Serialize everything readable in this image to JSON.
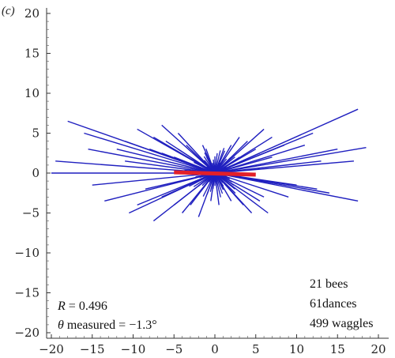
{
  "panel_label": "(c)",
  "chart_data": {
    "type": "scatter",
    "title": "",
    "xlabel": "",
    "ylabel": "",
    "xlim": [
      -21,
      21
    ],
    "ylim": [
      -21,
      21
    ],
    "x_ticks": [
      -20,
      -15,
      -10,
      -5,
      0,
      5,
      10,
      15,
      20
    ],
    "y_ticks": [
      -20,
      -15,
      -10,
      -5,
      0,
      5,
      10,
      15,
      20
    ],
    "tick_labels_x": [
      "−20",
      "−15",
      "−10",
      "−5",
      "0",
      "5",
      "10",
      "15",
      "20"
    ],
    "tick_labels_y": [
      "−20",
      "−15",
      "−10",
      "−5",
      "0",
      "5",
      "10",
      "15",
      "20"
    ],
    "series": [
      {
        "mark": "waggle-vectors",
        "color": "#1f1fbf",
        "endpoints": [
          [
            -20.0,
            0.0
          ],
          [
            -18.0,
            6.5
          ],
          [
            -16.0,
            5.0
          ],
          [
            -15.5,
            3.0
          ],
          [
            -19.5,
            1.5
          ],
          [
            -15.0,
            -1.5
          ],
          [
            -13.5,
            -3.5
          ],
          [
            -10.5,
            -5.0
          ],
          [
            -7.5,
            -6.0
          ],
          [
            -9.5,
            -4.0
          ],
          [
            -11.0,
            1.5
          ],
          [
            -12.0,
            3.0
          ],
          [
            -11.0,
            4.0
          ],
          [
            -9.5,
            5.5
          ],
          [
            -6.5,
            6.0
          ],
          [
            -7.5,
            4.5
          ],
          [
            -8.0,
            3.0
          ],
          [
            -6.0,
            4.0
          ],
          [
            -4.5,
            5.0
          ],
          [
            -3.5,
            3.5
          ],
          [
            -4.5,
            3.0
          ],
          [
            -5.0,
            2.0
          ],
          [
            -6.5,
            2.5
          ],
          [
            -8.5,
            -2.0
          ],
          [
            -6.5,
            -3.0
          ],
          [
            -5.0,
            -4.0
          ],
          [
            -4.0,
            -5.0
          ],
          [
            -3.0,
            -4.0
          ],
          [
            -2.0,
            -5.5
          ],
          [
            -1.5,
            3.5
          ],
          [
            -1.0,
            2.0
          ],
          [
            -0.5,
            -3.5
          ],
          [
            0.5,
            -4.0
          ],
          [
            1.2,
            2.8
          ],
          [
            2.0,
            3.5
          ],
          [
            2.0,
            -3.5
          ],
          [
            3.0,
            4.5
          ],
          [
            3.5,
            -4.0
          ],
          [
            4.0,
            4.0
          ],
          [
            4.5,
            -5.0
          ],
          [
            5.0,
            3.0
          ],
          [
            5.5,
            -3.5
          ],
          [
            6.0,
            5.5
          ],
          [
            6.5,
            -5.0
          ],
          [
            7.0,
            4.5
          ],
          [
            6.0,
            -3.0
          ],
          [
            5.5,
            2.5
          ],
          [
            7.0,
            2.0
          ],
          [
            8.5,
            3.5
          ],
          [
            9.0,
            -3.0
          ],
          [
            10.0,
            -1.5
          ],
          [
            11.0,
            3.5
          ],
          [
            12.0,
            5.0
          ],
          [
            12.5,
            -2.0
          ],
          [
            13.0,
            1.5
          ],
          [
            14.0,
            -2.5
          ],
          [
            15.0,
            3.0
          ],
          [
            17.0,
            1.5
          ],
          [
            17.5,
            -3.5
          ],
          [
            18.5,
            3.2
          ],
          [
            17.5,
            8.0
          ]
        ]
      },
      {
        "name": "mean",
        "mark": "mean-vector",
        "color": "#e2202a",
        "from": [
          -5.0,
          0.1
        ],
        "to": [
          5.0,
          -0.2
        ]
      }
    ],
    "annotations": {
      "R_value": "0.496",
      "theta_value": "−1.3°",
      "bees": "21 bees",
      "dances": "61dances",
      "waggles": "499 waggles"
    }
  }
}
